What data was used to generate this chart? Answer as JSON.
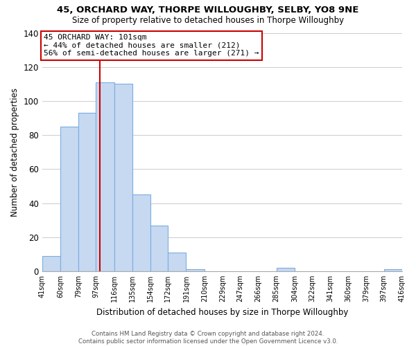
{
  "title": "45, ORCHARD WAY, THORPE WILLOUGHBY, SELBY, YO8 9NE",
  "subtitle": "Size of property relative to detached houses in Thorpe Willoughby",
  "xlabel": "Distribution of detached houses by size in Thorpe Willoughby",
  "ylabel": "Number of detached properties",
  "bar_edges": [
    41,
    60,
    79,
    97,
    116,
    135,
    154,
    172,
    191,
    210,
    229,
    247,
    266,
    285,
    304,
    322,
    341,
    360,
    379,
    397,
    416
  ],
  "bar_heights": [
    9,
    85,
    93,
    111,
    110,
    45,
    27,
    11,
    1,
    0,
    0,
    0,
    0,
    2,
    0,
    0,
    0,
    0,
    0,
    1
  ],
  "bar_color": "#c6d9f1",
  "bar_edge_color": "#7aadde",
  "property_line_x": 101,
  "ylim": [
    0,
    140
  ],
  "yticks": [
    0,
    20,
    40,
    60,
    80,
    100,
    120,
    140
  ],
  "annotation_title": "45 ORCHARD WAY: 101sqm",
  "annotation_line1": "← 44% of detached houses are smaller (212)",
  "annotation_line2": "56% of semi-detached houses are larger (271) →",
  "footer_line1": "Contains HM Land Registry data © Crown copyright and database right 2024.",
  "footer_line2": "Contains public sector information licensed under the Open Government Licence v3.0.",
  "tick_labels": [
    "41sqm",
    "60sqm",
    "79sqm",
    "97sqm",
    "116sqm",
    "135sqm",
    "154sqm",
    "172sqm",
    "191sqm",
    "210sqm",
    "229sqm",
    "247sqm",
    "266sqm",
    "285sqm",
    "304sqm",
    "322sqm",
    "341sqm",
    "360sqm",
    "379sqm",
    "397sqm",
    "416sqm"
  ],
  "background_color": "#ffffff",
  "grid_color": "#cccccc"
}
